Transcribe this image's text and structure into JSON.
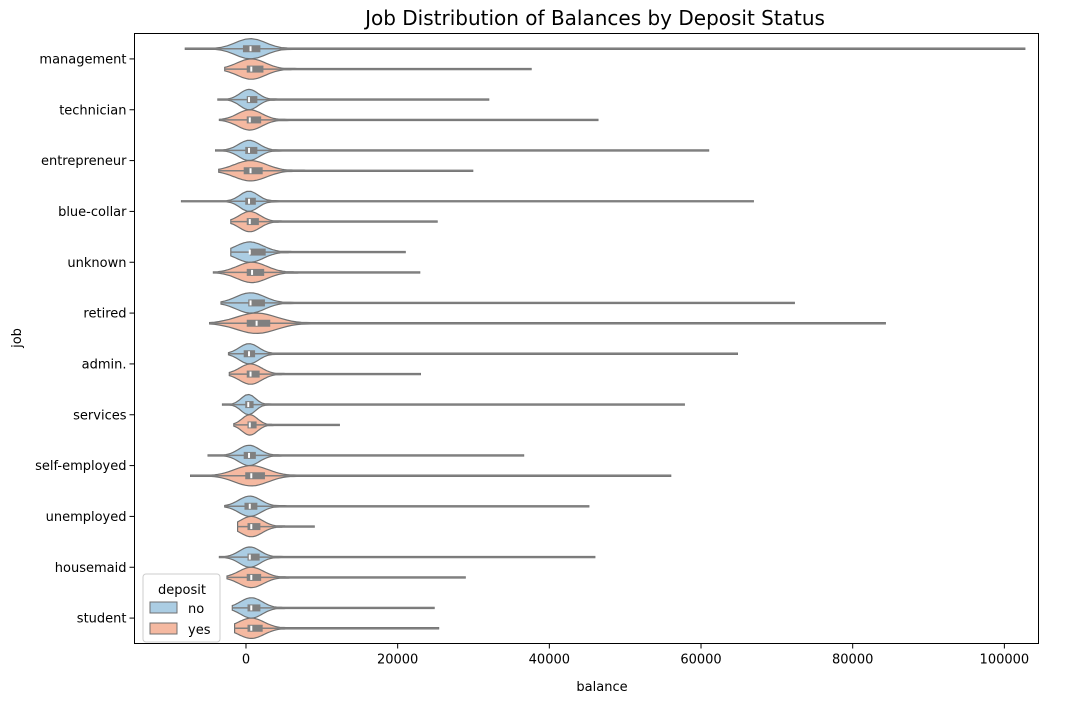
{
  "chart_data": {
    "type": "violin",
    "title": "Job Distribution of Balances by Deposit Status",
    "xlabel": "balance",
    "ylabel": "job",
    "xlim": [
      -14700,
      104500
    ],
    "xticks": [
      0,
      20000,
      40000,
      60000,
      80000,
      100000
    ],
    "xtick_labels": [
      "0",
      "20000",
      "40000",
      "60000",
      "80000",
      "100000"
    ],
    "orientation": "horizontal",
    "grid": false,
    "categories": [
      "management",
      "technician",
      "entrepreneur",
      "blue-collar",
      "unknown",
      "retired",
      "admin.",
      "services",
      "self-employed",
      "unemployed",
      "housemaid",
      "student"
    ],
    "legend": {
      "title": "deposit",
      "placement": "lower-left",
      "entries": [
        "no",
        "yes"
      ]
    },
    "colors": {
      "no": "#abcde3",
      "yes": "#f5b9a1",
      "edge": "#707070",
      "box": "#808080",
      "median": "#ffffff"
    },
    "series": [
      {
        "name": "no",
        "min": [
          -8000,
          -3700,
          -4000,
          -8500,
          -2000,
          -3300,
          -2300,
          -3100,
          -5000,
          -2800,
          -3500,
          -1800
        ],
        "q1": [
          -400,
          100,
          -100,
          -100,
          500,
          300,
          -300,
          -100,
          -300,
          -200,
          200,
          200
        ],
        "median": [
          600,
          400,
          400,
          400,
          500,
          600,
          400,
          300,
          400,
          500,
          500,
          700
        ],
        "q3": [
          1900,
          1500,
          1500,
          1300,
          2600,
          2500,
          1200,
          1000,
          1300,
          1500,
          1800,
          1900
        ],
        "max": [
          102700,
          32000,
          61000,
          66900,
          21000,
          72300,
          64800,
          57800,
          36600,
          45200,
          46000,
          24800
        ]
      },
      {
        "name": "yes",
        "min": [
          -2800,
          -3500,
          -3600,
          -2000,
          -4300,
          -4800,
          -2200,
          -1600,
          -7300,
          -1100,
          -2500,
          -1500
        ],
        "q1": [
          100,
          100,
          -300,
          100,
          100,
          100,
          100,
          200,
          -100,
          200,
          100,
          200
        ],
        "median": [
          700,
          500,
          600,
          500,
          800,
          1400,
          600,
          500,
          700,
          700,
          700,
          700
        ],
        "q3": [
          2300,
          2000,
          2200,
          1700,
          2400,
          3200,
          1800,
          1400,
          2500,
          1900,
          2000,
          2200
        ],
        "max": [
          37600,
          46400,
          29900,
          25200,
          22900,
          84300,
          23000,
          12300,
          56000,
          9000,
          28900,
          25400
        ]
      }
    ]
  }
}
